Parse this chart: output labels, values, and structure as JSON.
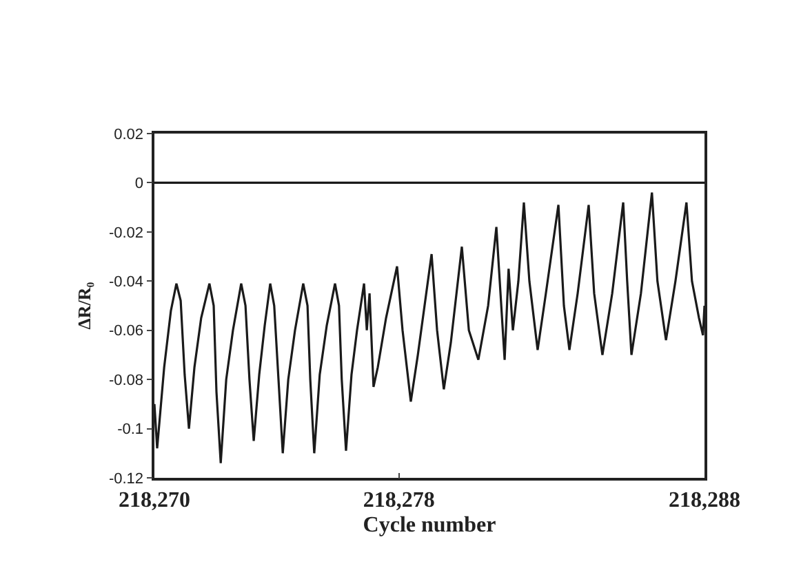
{
  "chart_data": {
    "type": "line",
    "xlabel": "Cycle number",
    "ylabel": "ΔR/R₀",
    "x": [
      218270.0,
      218270.09,
      218270.32,
      218270.54,
      218270.72,
      218270.86,
      218270.99,
      218271.13,
      218271.31,
      218271.53,
      218271.8,
      218271.94,
      218272.03,
      218272.17,
      218272.35,
      218272.57,
      218272.84,
      218272.98,
      218273.11,
      218273.25,
      218273.43,
      218273.61,
      218273.79,
      218273.92,
      218274.06,
      218274.2,
      218274.38,
      218274.6,
      218274.87,
      218275.01,
      218275.1,
      218275.23,
      218275.41,
      218275.64,
      218275.91,
      218276.04,
      218276.13,
      218276.27,
      218276.45,
      218276.63,
      218276.86,
      218276.95,
      218277.04,
      218277.17,
      218277.31,
      218277.58,
      218277.94,
      218278.12,
      218278.39,
      218278.62,
      218278.84,
      218279.07,
      218279.25,
      218279.47,
      218279.7,
      218280.06,
      218280.29,
      218280.6,
      218280.92,
      218281.19,
      218281.46,
      218281.59,
      218281.73,
      218281.91,
      218282.09,
      218282.27,
      218282.54,
      218282.81,
      218283.22,
      218283.4,
      218283.58,
      218283.85,
      218284.21,
      218284.39,
      218284.66,
      218284.98,
      218285.34,
      218285.47,
      218285.61,
      218285.92,
      218286.28,
      218286.46,
      218286.74,
      218287.05,
      218287.41,
      218287.59,
      218287.82,
      218287.95,
      218288.0
    ],
    "series": [
      {
        "color": "#1a1a1a",
        "values": [
          -0.09,
          -0.108,
          -0.075,
          -0.052,
          -0.041,
          -0.048,
          -0.078,
          -0.1,
          -0.075,
          -0.055,
          -0.041,
          -0.05,
          -0.085,
          -0.114,
          -0.08,
          -0.06,
          -0.041,
          -0.05,
          -0.08,
          -0.105,
          -0.078,
          -0.058,
          -0.041,
          -0.05,
          -0.08,
          -0.11,
          -0.08,
          -0.06,
          -0.041,
          -0.05,
          -0.08,
          -0.11,
          -0.078,
          -0.058,
          -0.041,
          -0.05,
          -0.08,
          -0.109,
          -0.078,
          -0.06,
          -0.041,
          -0.06,
          -0.045,
          -0.083,
          -0.075,
          -0.055,
          -0.034,
          -0.06,
          -0.089,
          -0.07,
          -0.05,
          -0.029,
          -0.06,
          -0.084,
          -0.065,
          -0.026,
          -0.06,
          -0.072,
          -0.05,
          -0.018,
          -0.072,
          -0.035,
          -0.06,
          -0.04,
          -0.008,
          -0.04,
          -0.068,
          -0.045,
          -0.009,
          -0.05,
          -0.068,
          -0.045,
          -0.009,
          -0.045,
          -0.07,
          -0.045,
          -0.008,
          -0.04,
          -0.07,
          -0.045,
          -0.004,
          -0.04,
          -0.064,
          -0.04,
          -0.008,
          -0.04,
          -0.055,
          -0.062,
          -0.05
        ]
      }
    ],
    "xlim": [
      218270,
      218288
    ],
    "xticks": [
      {
        "value": 218270,
        "label": "218,270"
      },
      {
        "value": 218278,
        "label": "218,278"
      },
      {
        "value": 218288,
        "label": "218,288"
      }
    ],
    "ylim": [
      -0.12,
      0.02
    ],
    "yticks": [
      -0.12,
      -0.1,
      -0.08,
      -0.06,
      -0.04,
      -0.02,
      0,
      0.02
    ],
    "ref_lines": [
      {
        "axis": "y",
        "value": 0,
        "color": "#1a1a1a"
      }
    ],
    "grid": false,
    "marker": "none",
    "line_style": "solid"
  }
}
